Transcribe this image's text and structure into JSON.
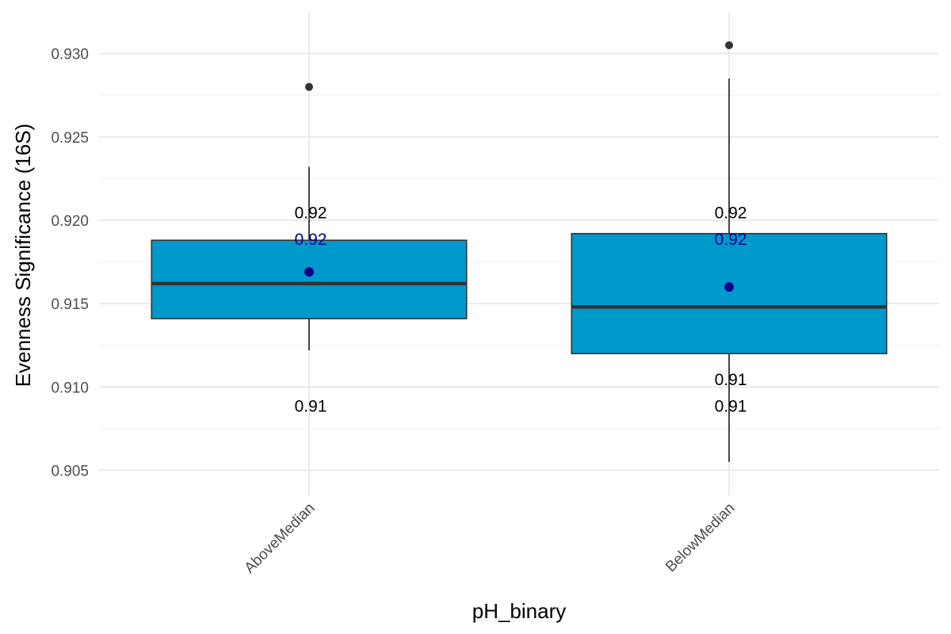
{
  "chart_data": {
    "type": "box",
    "xlabel": "pH_binary",
    "ylabel": "Evenness Significance (16S)",
    "ylim": [
      0.9035,
      0.9325
    ],
    "y_ticks": [
      0.905,
      0.91,
      0.915,
      0.92,
      0.925,
      0.93
    ],
    "y_tick_labels": [
      "0.905",
      "0.910",
      "0.915",
      "0.920",
      "0.925",
      "0.930"
    ],
    "y_minor_ticks": [
      0.9075,
      0.9125,
      0.9175,
      0.9225,
      0.9275
    ],
    "grid": true,
    "box_fill": "#0099cc",
    "box_stroke": "#333333",
    "mean_color": "#00008b",
    "outlier_color": "#333333",
    "categories": [
      "AboveMedian",
      "BelowMedian"
    ],
    "boxes": [
      {
        "category": "AboveMedian",
        "whisker_low": 0.9122,
        "q1": 0.9141,
        "median": 0.9162,
        "q3": 0.9188,
        "whisker_high": 0.9232,
        "mean": 0.9169,
        "outliers": [
          0.928
        ],
        "labels": [
          {
            "text": "0.92",
            "y": 0.9205,
            "color": "#000000"
          },
          {
            "text": "0.92",
            "y": 0.9189,
            "color": "#00008b"
          },
          {
            "text": "0.91",
            "y": 0.9089,
            "color": "#000000"
          }
        ]
      },
      {
        "category": "BelowMedian",
        "whisker_low": 0.9055,
        "q1": 0.912,
        "median": 0.9148,
        "q3": 0.9192,
        "whisker_high": 0.9285,
        "mean": 0.916,
        "outliers": [
          0.9305
        ],
        "labels": [
          {
            "text": "0.92",
            "y": 0.9205,
            "color": "#000000"
          },
          {
            "text": "0.92",
            "y": 0.9189,
            "color": "#00008b"
          },
          {
            "text": "0.91",
            "y": 0.9105,
            "color": "#000000"
          },
          {
            "text": "0.91",
            "y": 0.9089,
            "color": "#000000"
          }
        ]
      }
    ]
  }
}
